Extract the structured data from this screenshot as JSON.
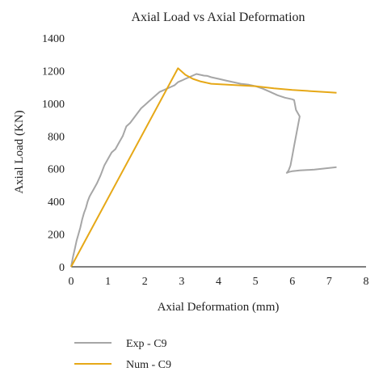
{
  "chart_data": {
    "type": "line",
    "title": "Axial Load vs Axial Deformation",
    "xlabel": "Axial Deformation (mm)",
    "ylabel": "Axial Load (KN)",
    "xlim": [
      0,
      8
    ],
    "ylim": [
      0,
      1400
    ],
    "xticks": [
      "0",
      "1",
      "2",
      "3",
      "4",
      "5",
      "6",
      "7",
      "8"
    ],
    "yticks": [
      "0",
      "200",
      "400",
      "600",
      "800",
      "1000",
      "1200",
      "1400"
    ],
    "grid": false,
    "legend_position": "bottom-left",
    "series": [
      {
        "name": "Exp - C9",
        "color": "#a6a6a6",
        "x": [
          0,
          0.05,
          0.1,
          0.15,
          0.2,
          0.25,
          0.3,
          0.35,
          0.4,
          0.45,
          0.5,
          0.55,
          0.6,
          0.7,
          0.8,
          0.9,
          1.0,
          1.1,
          1.2,
          1.3,
          1.4,
          1.5,
          1.6,
          1.7,
          1.8,
          1.9,
          2.0,
          2.1,
          2.2,
          2.3,
          2.4,
          2.5,
          2.6,
          2.7,
          2.8,
          2.9,
          3.0,
          3.1,
          3.2,
          3.3,
          3.4,
          3.5,
          3.6,
          3.7,
          3.8,
          3.9,
          4.0,
          4.2,
          4.4,
          4.6,
          4.8,
          5.0,
          5.2,
          5.4,
          5.6,
          5.8,
          6.0,
          6.05,
          6.1,
          6.15,
          6.2,
          6.15,
          6.1,
          6.05,
          6.0,
          5.95,
          5.9,
          5.85,
          5.9,
          6.0,
          6.2,
          6.4,
          6.6,
          6.8,
          7.0,
          7.2
        ],
        "y": [
          0,
          60,
          110,
          160,
          200,
          240,
          290,
          330,
          360,
          400,
          430,
          450,
          470,
          510,
          560,
          620,
          660,
          700,
          720,
          760,
          800,
          860,
          880,
          910,
          940,
          970,
          990,
          1010,
          1030,
          1050,
          1070,
          1080,
          1090,
          1100,
          1110,
          1130,
          1140,
          1150,
          1160,
          1170,
          1180,
          1175,
          1170,
          1168,
          1160,
          1155,
          1150,
          1140,
          1130,
          1120,
          1115,
          1105,
          1090,
          1070,
          1050,
          1035,
          1025,
          1020,
          960,
          940,
          920,
          860,
          800,
          740,
          680,
          620,
          590,
          575,
          580,
          585,
          590,
          592,
          595,
          600,
          605,
          610
        ]
      },
      {
        "name": "Num - C9",
        "color": "#e6a817",
        "x": [
          0,
          2.9,
          3.1,
          3.3,
          3.5,
          3.8,
          4.2,
          4.6,
          5.0,
          5.5,
          6.0,
          6.5,
          7.0,
          7.2
        ],
        "y": [
          0,
          1215,
          1175,
          1150,
          1135,
          1120,
          1115,
          1110,
          1105,
          1092,
          1082,
          1075,
          1068,
          1065
        ]
      }
    ]
  }
}
